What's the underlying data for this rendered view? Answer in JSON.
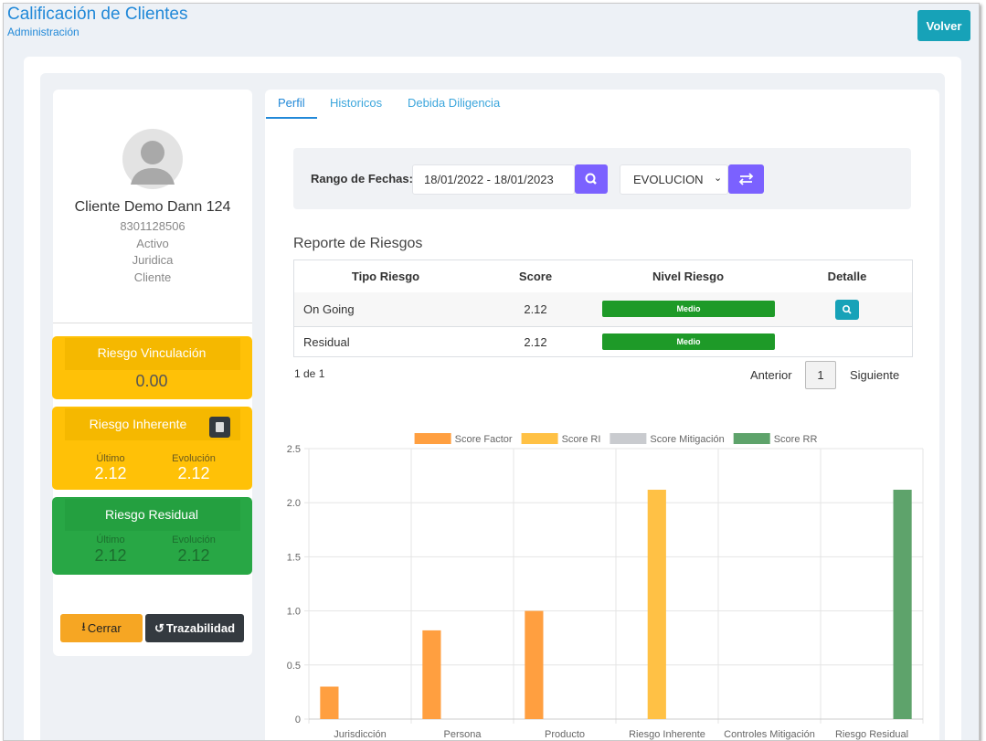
{
  "header": {
    "title": "Calificación de Clientes",
    "subtitle": "Administración",
    "back_button": "Volver"
  },
  "profile": {
    "name": "Cliente Demo Dann 124",
    "id": "8301128506",
    "status": "Activo",
    "person_type": "Juridica",
    "role": "Cliente"
  },
  "cards": {
    "vinculacion": {
      "title": "Riesgo Vinculación",
      "value": "0.00"
    },
    "inherente": {
      "title": "Riesgo Inherente",
      "last_label": "Último",
      "last": "2.12",
      "evolution_label": "Evolución",
      "evolution": "2.12"
    },
    "residual": {
      "title": "Riesgo Residual",
      "last_label": "Último",
      "last": "2.12",
      "evolution_label": "Evolución",
      "evolution": "2.12"
    }
  },
  "buttons": {
    "close": "Cerrar",
    "trace": "Trazabilidad"
  },
  "tabs": [
    "Perfil",
    "Historicos",
    "Debida Diligencia"
  ],
  "filter": {
    "label": "Rango de Fechas:",
    "range": "18/01/2022 - 18/01/2023",
    "mode": "EVOLUCION"
  },
  "report": {
    "title": "Reporte de Riesgos",
    "columns": [
      "Tipo Riesgo",
      "Score",
      "Nivel Riesgo",
      "Detalle"
    ],
    "rows": [
      [
        "On Going",
        "2.12",
        "Medio"
      ],
      [
        "Residual",
        "2.12",
        "Medio"
      ]
    ],
    "pagination": {
      "summary": "1 de 1",
      "previous": "Anterior",
      "page": "1",
      "next": "Siguiente"
    }
  },
  "chart_data": {
    "type": "bar",
    "categories": [
      "Jurisdicción",
      "Persona",
      "Producto",
      "Riesgo Inherente",
      "Controles Mitigación",
      "Riesgo Residual"
    ],
    "series": [
      {
        "name": "Score Factor",
        "color": "#ff9f40",
        "values": [
          0.3,
          0.82,
          1.0,
          0,
          0,
          0
        ]
      },
      {
        "name": "Score RI",
        "color": "#ffc145",
        "values": [
          0,
          0,
          0,
          2.12,
          0,
          0
        ]
      },
      {
        "name": "Score Mitigación",
        "color": "#c9cbcf",
        "values": [
          0,
          0,
          0,
          0,
          0,
          0
        ]
      },
      {
        "name": "Score RR",
        "color": "#5ea36b",
        "values": [
          0,
          0,
          0,
          0,
          0,
          2.12
        ]
      }
    ],
    "ylim": [
      0,
      2.5
    ],
    "yticks": [
      0,
      0.5,
      {
        "value": 1,
        "label": "1.0"
      },
      1.5,
      {
        "value": 2,
        "label": "2.0"
      },
      2.5
    ],
    "grid": true,
    "legend": "top"
  }
}
